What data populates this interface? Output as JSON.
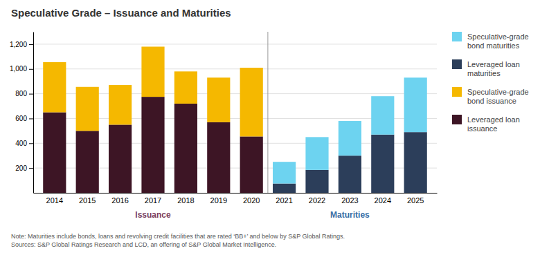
{
  "chart_data": {
    "type": "bar",
    "stacked": true,
    "title": "Speculative Grade – Issuance and Maturities",
    "categories": [
      "2014",
      "2015",
      "2016",
      "2017",
      "2018",
      "2019",
      "2020",
      "2021",
      "2022",
      "2023",
      "2024",
      "2025"
    ],
    "series": [
      {
        "name": "Leveraged loan\nissuance",
        "color": "#3D1525",
        "values": [
          650,
          500,
          550,
          775,
          720,
          570,
          455,
          null,
          null,
          null,
          null,
          null
        ]
      },
      {
        "name": "Speculative-grade\nbond issuance",
        "color": "#F5B800",
        "values": [
          405,
          355,
          320,
          405,
          260,
          360,
          555,
          null,
          null,
          null,
          null,
          null
        ]
      },
      {
        "name": "Leveraged loan\nmaturities",
        "color": "#2C3E5A",
        "values": [
          null,
          null,
          null,
          null,
          null,
          null,
          null,
          75,
          185,
          300,
          470,
          490
        ]
      },
      {
        "name": "Speculative-grade\nbond maturities",
        "color": "#6DD3F0",
        "values": [
          null,
          null,
          null,
          null,
          null,
          null,
          null,
          175,
          265,
          280,
          310,
          440
        ]
      }
    ],
    "ylim": [
      0,
      1300
    ],
    "yticks": [
      200,
      400,
      600,
      800,
      {
        "value": 1000,
        "label": "1,000"
      },
      {
        "value": 1200,
        "label": "1,200"
      }
    ],
    "grid": true,
    "legend": "right",
    "annotations": [
      {
        "text": "Issuance",
        "color": "#7B3F5E",
        "from": "2014",
        "to": "2020"
      },
      {
        "text": "Maturities",
        "color": "#3A6EA5",
        "from": "2021",
        "to": "2025"
      }
    ],
    "note": "Note: Maturities include bonds, loans and revolving credit facilities that are rated ‘BB+’ and below by S&P Global Ratings.\nSources: S&P Global Ratings Research and LCD, an offering of S&P Global Market Intelligence."
  }
}
